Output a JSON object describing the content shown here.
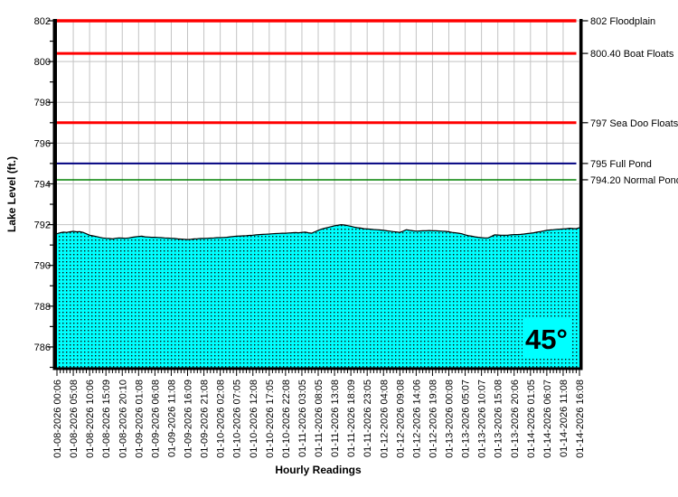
{
  "chart_data": {
    "type": "area",
    "xlabel": "Hourly Readings",
    "ylabel": "Lake Level (ft.)",
    "ylim": [
      785,
      802
    ],
    "yticks": [
      786,
      788,
      790,
      792,
      794,
      796,
      798,
      800,
      802
    ],
    "grid": "on",
    "legend_position": "none",
    "x_tick_labels": [
      "01-08-2026 00:06",
      "01-08-2026 05:08",
      "01-08-2026 10:06",
      "01-08-2026 15:09",
      "01-08-2026 20:10",
      "01-09-2026 01:08",
      "01-09-2026 06:08",
      "01-09-2026 11:08",
      "01-09-2026 16:09",
      "01-09-2026 21:08",
      "01-10-2026 02:08",
      "01-10-2026 07:05",
      "01-10-2026 12:08",
      "01-10-2026 17:05",
      "01-10-2026 22:08",
      "01-11-2026 03:05",
      "01-11-2026 08:05",
      "01-11-2026 13:08",
      "01-11-2026 18:09",
      "01-11-2026 23:05",
      "01-12-2026 04:08",
      "01-12-2026 09:08",
      "01-12-2026 14:06",
      "01-12-2026 19:08",
      "01-13-2026 00:08",
      "01-13-2026 05:07",
      "01-13-2026 10:07",
      "01-13-2026 15:08",
      "01-13-2026 20:06",
      "01-14-2026 01:05",
      "01-14-2026 06:07",
      "01-14-2026 11:08",
      "01-14-2026 16:08"
    ],
    "x_label_every_n_hours": 5,
    "series": [
      {
        "name": "Lake Level",
        "unit": "ft",
        "values": [
          791.55,
          791.6,
          791.63,
          791.62,
          791.65,
          791.67,
          791.65,
          791.66,
          791.62,
          791.55,
          791.48,
          791.45,
          791.42,
          791.38,
          791.35,
          791.33,
          791.32,
          791.3,
          791.33,
          791.35,
          791.34,
          791.33,
          791.35,
          791.38,
          791.4,
          791.42,
          791.43,
          791.4,
          791.39,
          791.38,
          791.38,
          791.37,
          791.36,
          791.35,
          791.34,
          791.33,
          791.32,
          791.3,
          791.29,
          791.28,
          791.27,
          791.28,
          791.3,
          791.31,
          791.32,
          791.32,
          791.33,
          791.34,
          791.35,
          791.36,
          791.36,
          791.37,
          791.38,
          791.4,
          791.42,
          791.43,
          791.44,
          791.45,
          791.46,
          791.47,
          791.48,
          791.5,
          791.51,
          791.52,
          791.53,
          791.54,
          791.55,
          791.56,
          791.57,
          791.58,
          791.58,
          791.59,
          791.6,
          791.61,
          791.6,
          791.62,
          791.63,
          791.6,
          791.58,
          791.65,
          791.72,
          791.78,
          791.82,
          791.86,
          791.9,
          791.94,
          791.97,
          792.0,
          791.98,
          791.95,
          791.92,
          791.88,
          791.85,
          791.83,
          791.8,
          791.79,
          791.78,
          791.76,
          791.75,
          791.74,
          791.72,
          791.7,
          791.68,
          791.66,
          791.64,
          791.62,
          791.68,
          791.75,
          791.72,
          791.7,
          791.68,
          791.69,
          791.7,
          791.7,
          791.71,
          791.7,
          791.7,
          791.69,
          791.68,
          791.67,
          791.65,
          791.62,
          791.6,
          791.58,
          791.55,
          791.5,
          791.46,
          791.43,
          791.4,
          791.38,
          791.36,
          791.35,
          791.35,
          791.42,
          791.5,
          791.49,
          791.48,
          791.48,
          791.48,
          791.5,
          791.51,
          791.51,
          791.52,
          791.54,
          791.56,
          791.58,
          791.6,
          791.63,
          791.66,
          791.69,
          791.72,
          791.74,
          791.75,
          791.77,
          791.78,
          791.79,
          791.8,
          791.82,
          791.81,
          791.8,
          791.85
        ]
      }
    ],
    "reference_lines": [
      {
        "value": 802.0,
        "label": "802 Floodplain",
        "color": "#ff0000",
        "width": 3.5
      },
      {
        "value": 800.4,
        "label": "800.40 Boat Floats",
        "color": "#ff0000",
        "width": 3
      },
      {
        "value": 797.0,
        "label": "797 Sea Doo Floats",
        "color": "#ff0000",
        "width": 3
      },
      {
        "value": 795.0,
        "label": "795 Full Pond",
        "color": "#000080",
        "width": 2
      },
      {
        "value": 794.2,
        "label": "794.20 Normal Pond",
        "color": "#008000",
        "width": 1.5
      }
    ],
    "area_fill_color": "#00ffff",
    "area_dot_color": "#111111",
    "area_edge_color": "#000000",
    "grid_color": "#c3c3c3",
    "axis_color": "#000000",
    "temperature": "45°",
    "temperature_color": "#000080"
  }
}
